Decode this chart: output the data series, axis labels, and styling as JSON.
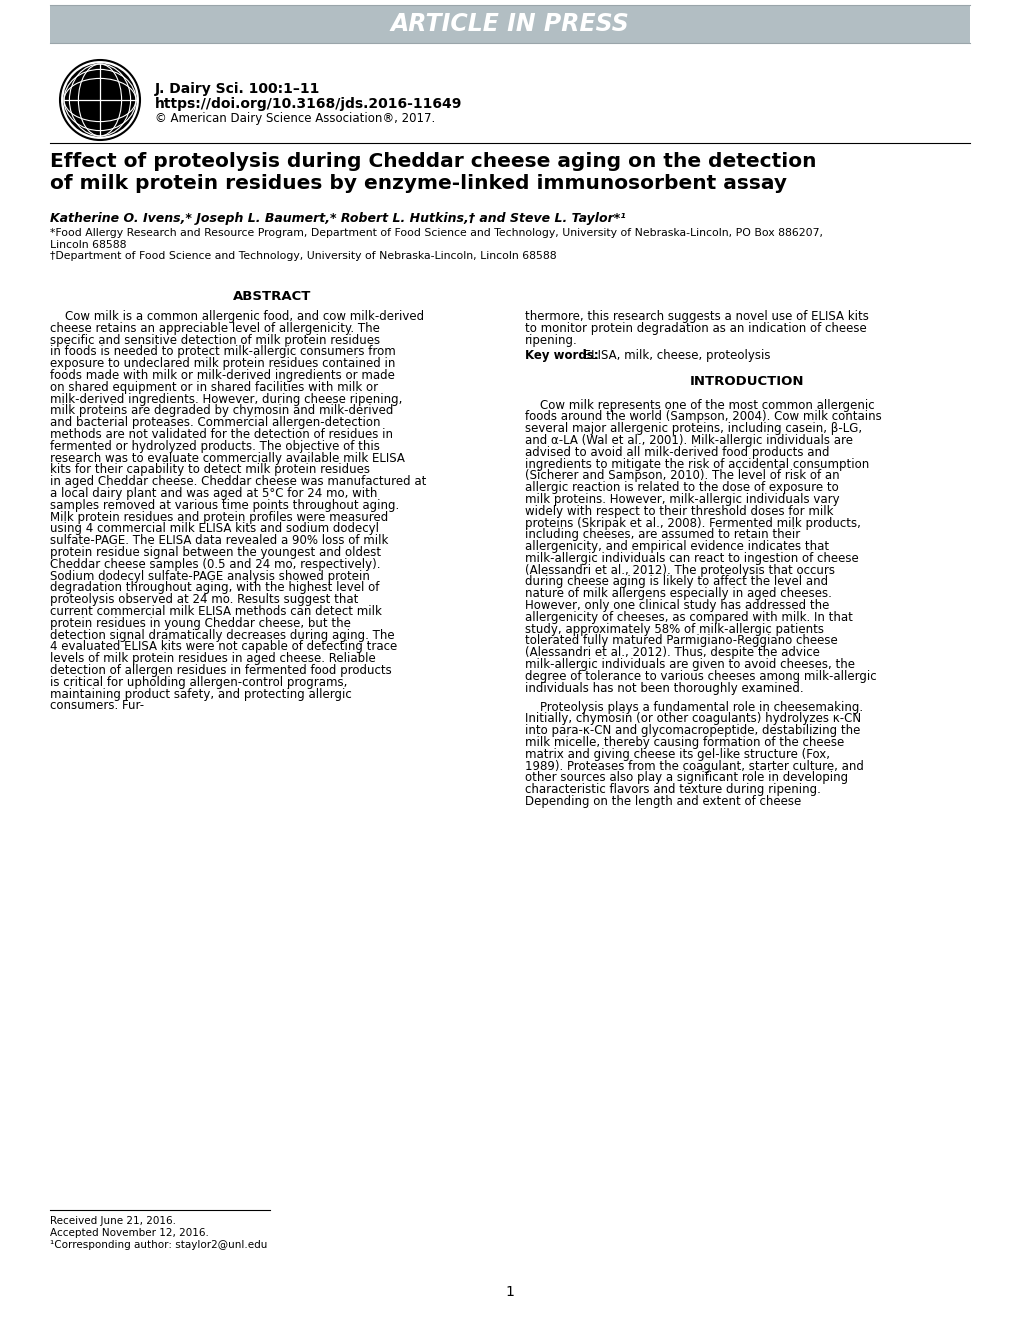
{
  "banner_text": "ARTICLE IN PRESS",
  "banner_bg": "#b2bec3",
  "banner_text_color": "#ffffff",
  "journal_line1": "J. Dairy Sci. 100:1–11",
  "journal_line2": "https://doi.org/10.3168/jds.2016-11649",
  "journal_line3": "© American Dairy Science Association®, 2017.",
  "article_title_line1": "Effect of proteolysis during Cheddar cheese aging on the detection",
  "article_title_line2": "of milk protein residues by enzyme-linked immunosorbent assay",
  "authors_line": "Katherine O. Ivens,* Joseph L. Baumert,* Robert L. Hutkins,† and Steve L. Taylor*¹",
  "affil1": "*Food Allergy Research and Resource Program, Department of Food Science and Technology, University of Nebraska-Lincoln, PO Box 886207,",
  "affil1b": "Lincoln 68588",
  "affil2": "†Department of Food Science and Technology, University of Nebraska-Lincoln, Lincoln 68588",
  "abstract_title": "ABSTRACT",
  "abstract_left": "Cow milk is a common allergenic food, and cow milk-derived cheese retains an appreciable level of allergenicity. The specific and sensitive detection of milk protein residues in foods is needed to protect milk-allergic consumers from exposure to undeclared milk protein residues contained in foods made with milk or milk-derived ingredients or made on shared equipment or in shared facilities with milk or milk-derived ingredients. However, during cheese ripening, milk proteins are degraded by chymosin and milk-derived and bacterial proteases. Commercial allergen-detection methods are not validated for the detection of residues in fermented or hydrolyzed products. The objective of this research was to evaluate commercially available milk ELISA kits for their capability to detect milk protein residues in aged Cheddar cheese. Cheddar cheese was manufactured at a local dairy plant and was aged at 5°C for 24 mo, with samples removed at various time points throughout aging. Milk protein residues and protein profiles were measured using 4 commercial milk ELISA kits and sodium dodecyl sulfate-PAGE. The ELISA data revealed a 90% loss of milk protein residue signal between the youngest and oldest Cheddar cheese samples (0.5 and 24 mo, respectively). Sodium dodecyl sulfate-PAGE analysis showed protein degradation throughout aging, with the highest level of proteolysis observed at 24 mo. Results suggest that current commercial milk ELISA methods can detect milk protein residues in young Cheddar cheese, but the detection signal dramatically decreases during aging. The 4 evaluated ELISA kits were not capable of detecting trace levels of milk protein residues in aged cheese. Reliable detection of allergen residues in fermented food products is critical for upholding allergen-control programs, maintaining product safety, and protecting allergic consumers. Fur-",
  "abstract_right_continuation": "thermore, this research suggests a novel use of ELISA kits to monitor protein degradation as an indication of cheese ripening.",
  "keywords_bold": "Key words:",
  "keywords_text": " ELISA, milk, cheese, proteolysis",
  "intro_title": "INTRODUCTION",
  "intro_para1": "Cow milk represents one of the most common allergenic foods around the world (Sampson, 2004). Cow milk contains several major allergenic proteins, including casein, β-LG, and α-LA (Wal et al., 2001). Milk-allergic individuals are advised to avoid all milk-derived food products and ingredients to mitigate the risk of accidental consumption (Sicherer and Sampson, 2010). The level of risk of an allergic reaction is related to the dose of exposure to milk proteins. However, milk-allergic individuals vary widely with respect to their threshold doses for milk proteins (Skripak et al., 2008). Fermented milk products, including cheeses, are assumed to retain their allergenicity, and empirical evidence indicates that milk-allergic individuals can react to ingestion of cheese (Alessandri et al., 2012). The proteolysis that occurs during cheese aging is likely to affect the level and nature of milk allergens especially in aged cheeses. However, only one clinical study has addressed the allergenicity of cheeses, as compared with milk. In that study, approximately 58% of milk-allergic patients tolerated fully matured Parmigiano-Reggiano cheese (Alessandri et al., 2012). Thus, despite the advice milk-allergic individuals are given to avoid cheeses, the degree of tolerance to various cheeses among milk-allergic individuals has not been thoroughly examined.",
  "intro_para2": "Proteolysis plays a fundamental role in cheesemaking. Initially, chymosin (or other coagulants) hydrolyzes κ-CN into para-κ-CN and glycomacropeptide, destabilizing the milk micelle, thereby causing formation of the cheese matrix and giving cheese its gel-like structure (Fox, 1989). Proteases from the coagulant, starter culture, and other sources also play a significant role in developing characteristic flavors and texture during ripening. Depending on the length and extent of cheese",
  "footnote_received": "Received June 21, 2016.",
  "footnote_accepted": "Accepted November 12, 2016.",
  "footnote_corr": "¹Corresponding author: staylor2@unl.edu",
  "page_number": "1",
  "bg_color": "#ffffff"
}
